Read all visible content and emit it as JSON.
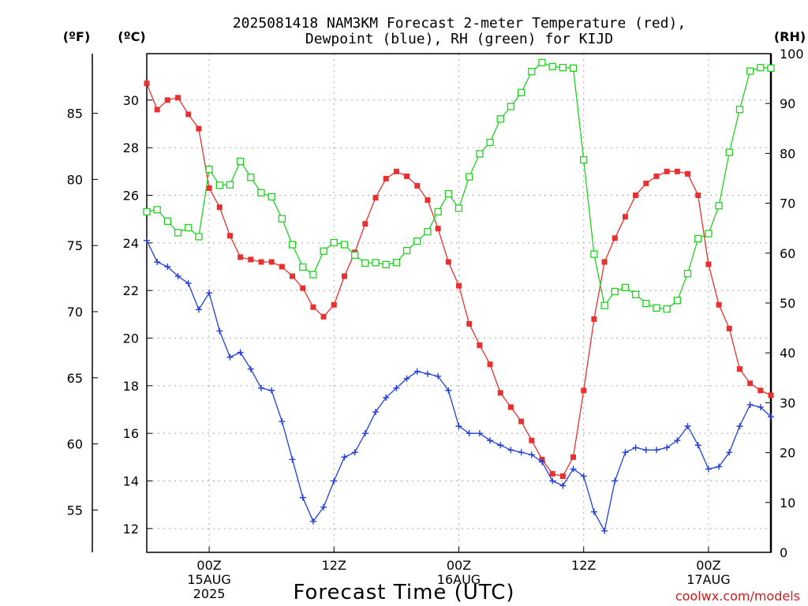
{
  "header": {
    "title_line1": "2025081418 NAM3KM Forecast 2-meter Temperature (red),",
    "title_line2": "Dewpoint (blue), RH (green) for KIJD",
    "unit_f": "(ºF)",
    "unit_c": "(ºC)",
    "unit_rh": "(RH)"
  },
  "footer": {
    "xlabel": "Forecast Time (UTC)",
    "credit": "coolwx.com/models"
  },
  "colors": {
    "temperature": "#e8302e",
    "dewpoint": "#1f3fd8",
    "rh": "#1ed21e",
    "credit": "#d21a1a"
  },
  "chart_data": {
    "type": "line",
    "title": "2025081418 NAM3KM Forecast 2-meter Temperature (red), Dewpoint (blue), RH (green) for KIJD",
    "xlabel": "Forecast Time (UTC)",
    "x_unit": "forecast hour",
    "x": [
      0,
      1,
      2,
      3,
      4,
      5,
      6,
      7,
      8,
      9,
      10,
      11,
      12,
      13,
      14,
      15,
      16,
      17,
      18,
      19,
      20,
      21,
      22,
      23,
      24,
      25,
      26,
      27,
      28,
      29,
      30,
      31,
      32,
      33,
      34,
      35,
      36,
      37,
      38,
      39,
      40,
      41,
      42,
      43,
      44,
      45,
      46,
      47,
      48,
      49,
      50,
      51,
      52,
      53,
      54,
      55,
      56,
      57,
      58,
      59,
      60
    ],
    "xlim": [
      0,
      60
    ],
    "x_ticks": [
      {
        "hour": 6,
        "labels": [
          "00Z",
          "15AUG",
          "2025"
        ]
      },
      {
        "hour": 18,
        "labels": [
          "12Z"
        ]
      },
      {
        "hour": 30,
        "labels": [
          "00Z",
          "16AUG"
        ]
      },
      {
        "hour": 42,
        "labels": [
          "12Z"
        ]
      },
      {
        "hour": 54,
        "labels": [
          "00Z",
          "17AUG"
        ]
      }
    ],
    "y_left": {
      "label": "(ºC)",
      "ylim": [
        11,
        31.95
      ],
      "ticks": [
        12,
        14,
        16,
        18,
        20,
        22,
        24,
        26,
        28,
        30
      ]
    },
    "y_left_f": {
      "label": "(ºF)",
      "ticks": [
        55,
        60,
        65,
        70,
        75,
        80,
        85
      ]
    },
    "y_right": {
      "label": "(RH)",
      "ylim": [
        0,
        100
      ],
      "ticks": [
        0,
        10,
        20,
        30,
        40,
        50,
        60,
        70,
        80,
        90,
        100
      ]
    },
    "grid": true,
    "series": [
      {
        "axis": "left",
        "color": "#e8302e",
        "marker": "square-filled",
        "values": [
          30.7,
          29.6,
          30.0,
          30.1,
          29.4,
          28.8,
          26.3,
          25.5,
          24.3,
          23.4,
          23.3,
          23.2,
          23.2,
          23.0,
          22.6,
          22.1,
          21.3,
          20.9,
          21.4,
          22.6,
          23.6,
          24.8,
          25.9,
          26.7,
          27.0,
          26.8,
          26.4,
          25.8,
          24.6,
          23.2,
          22.2,
          20.6,
          19.7,
          18.9,
          17.7,
          17.1,
          16.5,
          15.7,
          14.9,
          14.3,
          14.2,
          15.0,
          17.8,
          20.8,
          23.2,
          24.2,
          25.1,
          26.0,
          26.5,
          26.8,
          27.0,
          27.0,
          26.9,
          26.0,
          23.1,
          21.4,
          20.4,
          18.7,
          18.1,
          17.8,
          17.6
        ]
      },
      {
        "axis": "left",
        "color": "#1f3fd8",
        "marker": "plus",
        "values": [
          24.1,
          23.2,
          23.0,
          22.6,
          22.3,
          21.2,
          21.9,
          20.3,
          19.2,
          19.4,
          18.7,
          17.9,
          17.8,
          16.5,
          14.9,
          13.3,
          12.3,
          12.9,
          14.0,
          15.0,
          15.2,
          16.0,
          16.9,
          17.5,
          17.9,
          18.3,
          18.6,
          18.5,
          18.4,
          17.8,
          16.3,
          16.0,
          16.0,
          15.7,
          15.5,
          15.3,
          15.2,
          15.1,
          14.8,
          14.0,
          13.8,
          14.5,
          14.2,
          12.7,
          11.9,
          14.0,
          15.2,
          15.4,
          15.3,
          15.3,
          15.4,
          15.7,
          16.3,
          15.5,
          14.5,
          14.6,
          15.2,
          16.3,
          17.2,
          17.1,
          16.7
        ]
      },
      {
        "axis": "right",
        "color": "#1ed21e",
        "marker": "square-open",
        "values": [
          68.3,
          68.7,
          66.4,
          64.1,
          65.1,
          63.3,
          76.8,
          73.6,
          73.7,
          78.4,
          75.2,
          72.1,
          71.3,
          66.9,
          61.7,
          57.2,
          55.7,
          60.4,
          62.1,
          61.7,
          59.6,
          58.0,
          58.1,
          57.7,
          58.1,
          60.5,
          62.4,
          64.3,
          68.3,
          71.9,
          69.0,
          75.3,
          79.9,
          82.2,
          86.9,
          89.4,
          92.2,
          96.4,
          98.2,
          97.4,
          97.2,
          97.1,
          78.7,
          59.8,
          49.5,
          52.3,
          53.1,
          51.7,
          49.9,
          49.0,
          48.8,
          50.5,
          55.9,
          62.9,
          63.9,
          69.5,
          80.2,
          88.8,
          96.5,
          97.2,
          97.1
        ]
      }
    ]
  }
}
